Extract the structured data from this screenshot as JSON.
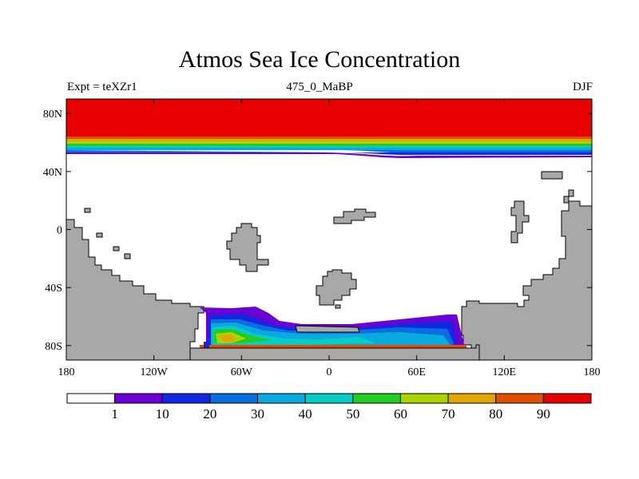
{
  "title": "Atmos Sea Ice Concentration",
  "header": {
    "left": "Expt = teXZr1",
    "center": "475_0_MaBP",
    "right": "DJF"
  },
  "colors": {
    "land": "#a8a8a8",
    "ice_bins": [
      "#ffffff",
      "#6a00d6",
      "#1428e0",
      "#0a6ee0",
      "#0aaae0",
      "#08ccc8",
      "#22cc22",
      "#aad400",
      "#e0a800",
      "#e05000",
      "#e60000"
    ]
  },
  "chart_data": {
    "type": "map",
    "title": "Atmos Sea Ice Concentration",
    "variable": "sea ice concentration",
    "season": "DJF",
    "experiment": "teXZr1",
    "age": "475_0_MaBP",
    "x_range": [
      -180,
      180
    ],
    "y_range": [
      -90,
      90
    ],
    "x_ticks": [
      -180,
      -120,
      -60,
      0,
      60,
      120,
      180
    ],
    "x_tick_labels": [
      "180",
      "120W",
      "60W",
      "0",
      "60E",
      "120E",
      "180"
    ],
    "y_ticks": [
      80,
      40,
      0,
      -40,
      -80
    ],
    "y_tick_labels": [
      "80N",
      "40N",
      "0",
      "40S",
      "80S"
    ],
    "colorbar": {
      "levels": [
        1,
        10,
        20,
        30,
        40,
        50,
        60,
        70,
        80,
        90
      ],
      "labels": [
        "1",
        "10",
        "20",
        "30",
        "40",
        "50",
        "60",
        "70",
        "80",
        "90"
      ]
    }
  }
}
